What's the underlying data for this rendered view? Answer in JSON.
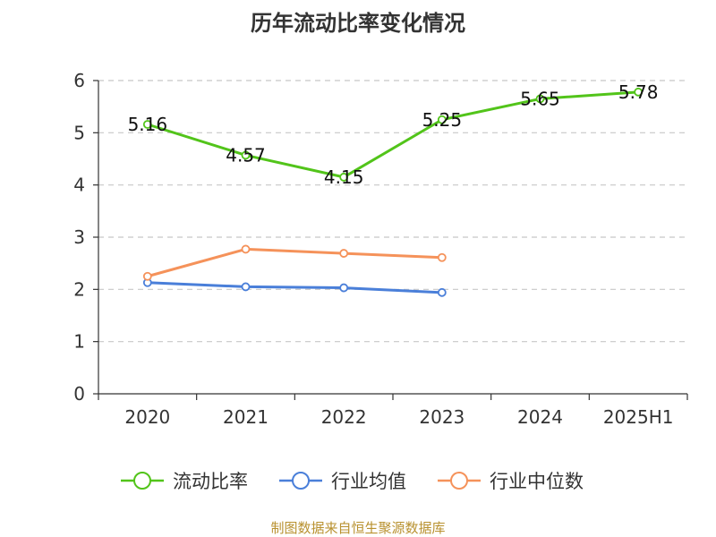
{
  "chart_data": {
    "type": "line",
    "title": "历年流动比率变化情况",
    "categories": [
      "2020",
      "2021",
      "2022",
      "2023",
      "2024",
      "2025H1"
    ],
    "ylim": [
      0,
      6
    ],
    "yticks": [
      0,
      1,
      2,
      3,
      4,
      5,
      6
    ],
    "grid": true,
    "legend_position": "bottom",
    "series": [
      {
        "name": "流动比率",
        "color": "#52c41a",
        "values": [
          5.16,
          4.57,
          4.15,
          5.25,
          5.65,
          5.78
        ],
        "show_labels": true
      },
      {
        "name": "行业均值",
        "color": "#4a7fd9",
        "values": [
          2.13,
          2.05,
          2.03,
          1.94,
          null,
          null
        ],
        "show_labels": false
      },
      {
        "name": "行业中位数",
        "color": "#f5925a",
        "values": [
          2.25,
          2.77,
          2.69,
          2.61,
          null,
          null
        ],
        "show_labels": false
      }
    ]
  },
  "source": "制图数据来自恒生聚源数据库"
}
